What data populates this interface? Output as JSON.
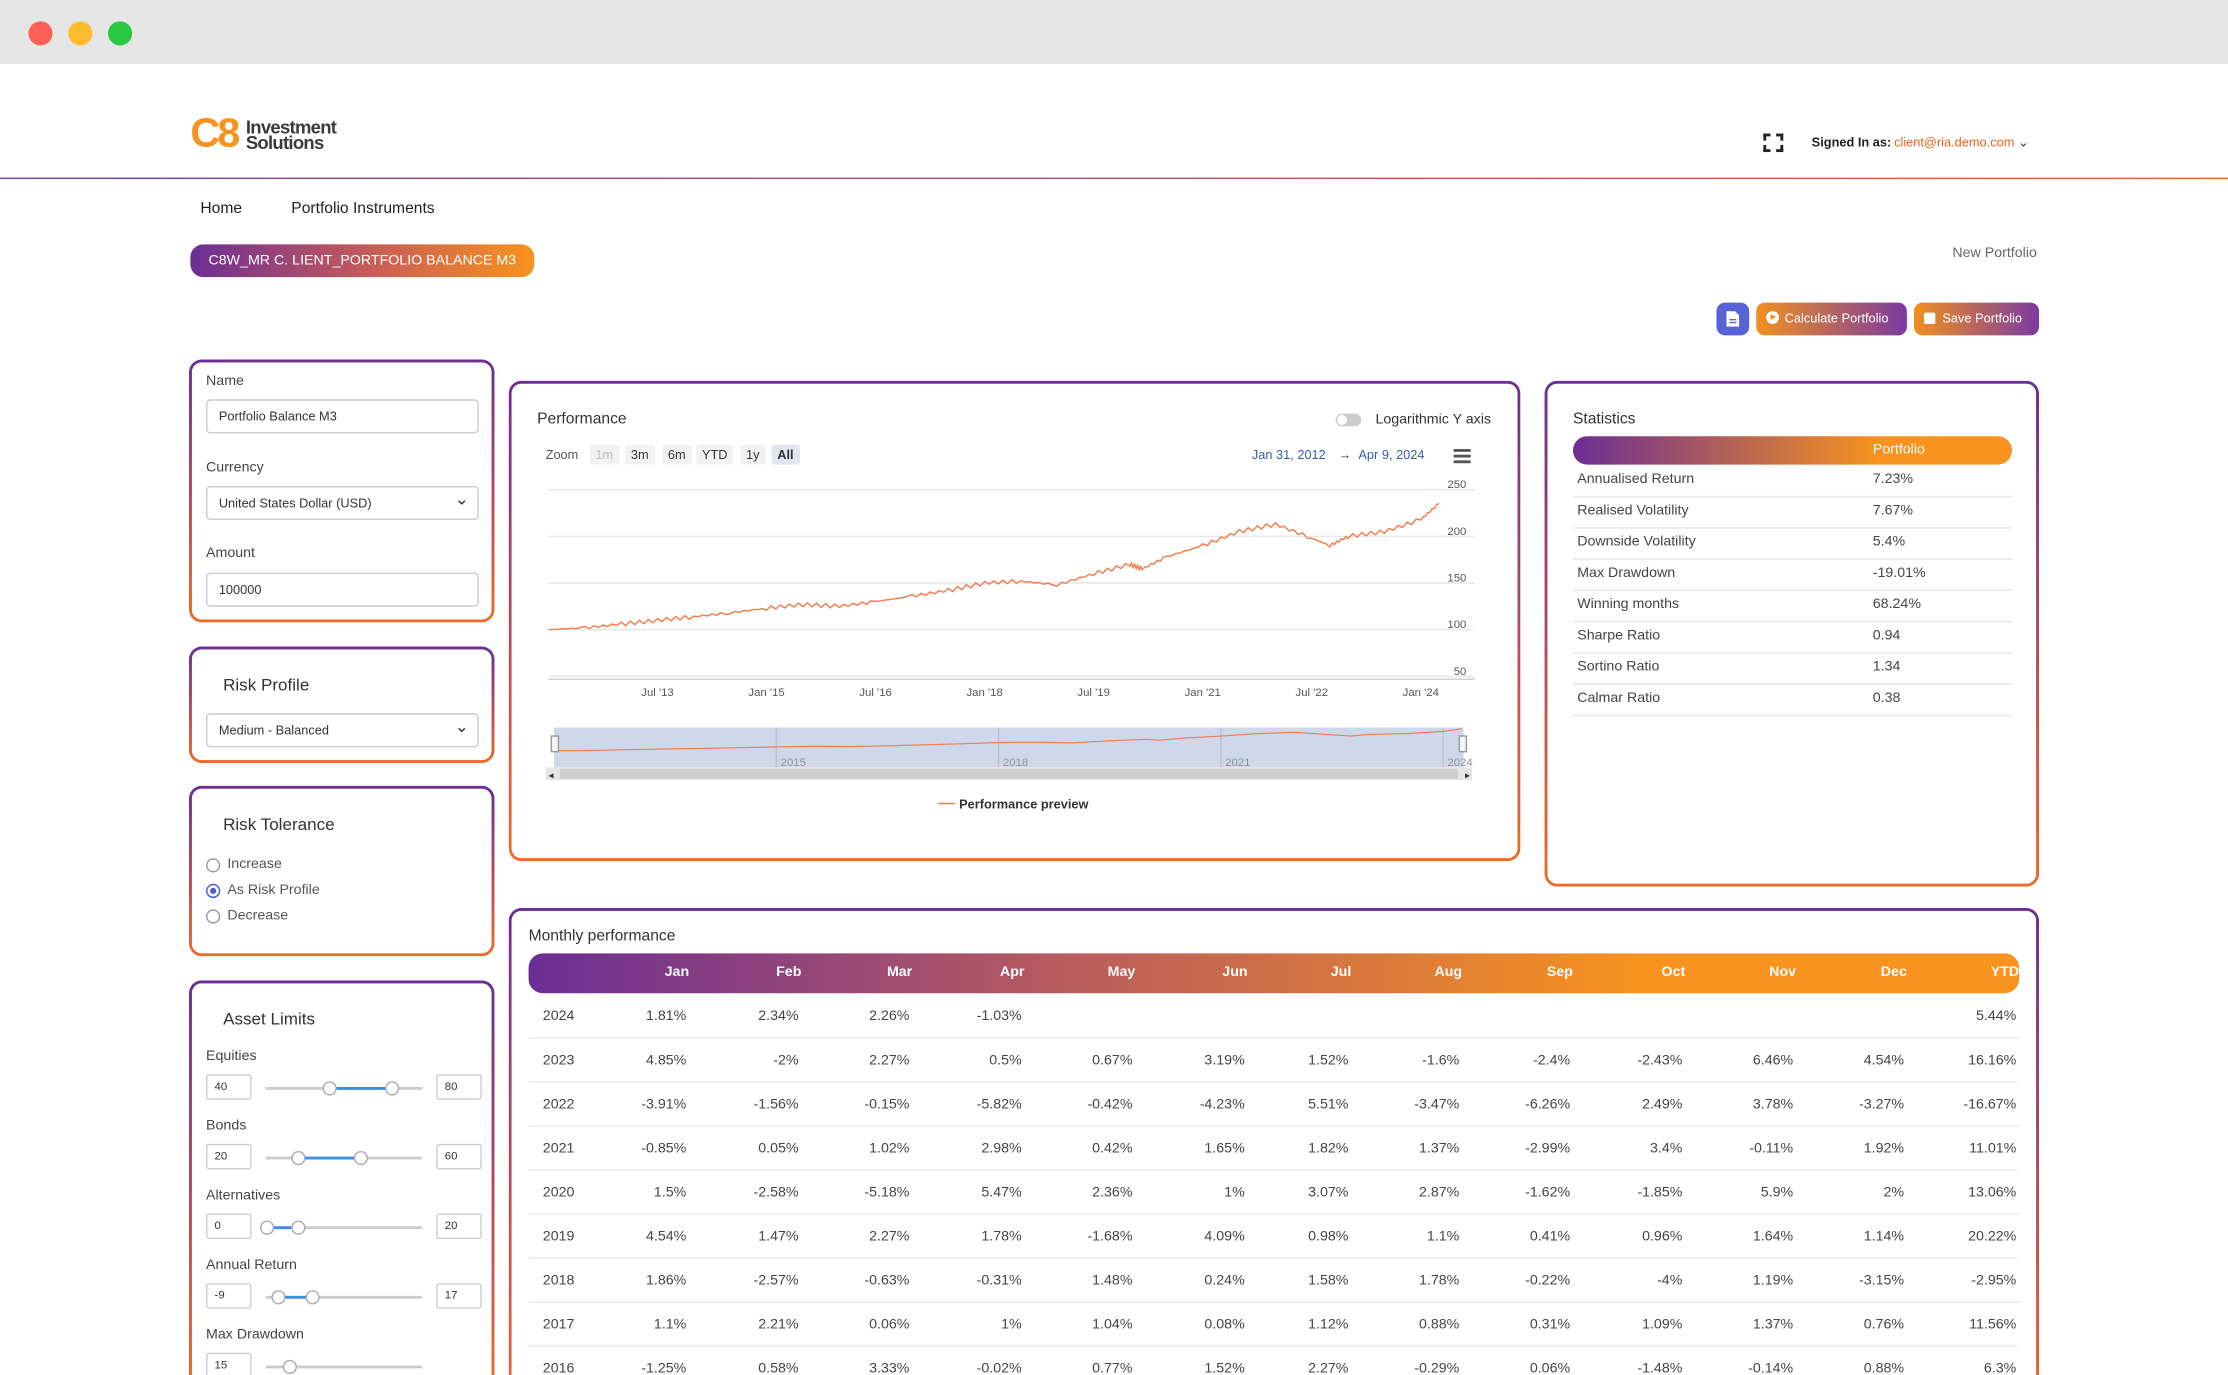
{
  "header": {
    "logo_mark": "C8",
    "logo_line1": "Investment",
    "logo_line2": "Solutions",
    "signed_in_label": "Signed In as:",
    "email": "client@ria.demo.com"
  },
  "nav": {
    "home": "Home",
    "instruments": "Portfolio Instruments"
  },
  "portfolio_pill": "C8W_MR C. LIENT_PORTFOLIO BALANCE M3",
  "new_portfolio": "New Portfolio",
  "toolbar": {
    "calculate": "Calculate Portfolio",
    "save": "Save Portfolio"
  },
  "form": {
    "name_label": "Name",
    "name_value": "Portfolio Balance M3",
    "currency_label": "Currency",
    "currency_value": "United States Dollar (USD)",
    "amount_label": "Amount",
    "amount_value": "100000"
  },
  "risk_profile": {
    "title": "Risk Profile",
    "value": "Medium - Balanced"
  },
  "risk_tolerance": {
    "title": "Risk Tolerance",
    "options": [
      "Increase",
      "As Risk Profile",
      "Decrease"
    ],
    "selected": "As Risk Profile"
  },
  "asset_limits": {
    "title": "Asset Limits",
    "items": [
      {
        "label": "Equities",
        "min": "40",
        "max": "80"
      },
      {
        "label": "Bonds",
        "min": "20",
        "max": "60"
      },
      {
        "label": "Alternatives",
        "min": "0",
        "max": "20"
      },
      {
        "label": "Annual Return",
        "min": "-9",
        "max": "17"
      },
      {
        "label": "Max Drawdown",
        "min": "15",
        "max": ""
      }
    ]
  },
  "performance": {
    "title": "Performance",
    "log_label": "Logarithmic Y axis",
    "zoom_label": "Zoom",
    "zoom_options": [
      "1m",
      "3m",
      "6m",
      "YTD",
      "1y",
      "All"
    ],
    "zoom_selected": "All",
    "date_from": "Jan 31, 2012",
    "date_arrow": "→",
    "date_to": "Apr 9, 2024",
    "legend": "Performance preview",
    "navigator_labels": [
      "2015",
      "2018",
      "2021",
      "2024"
    ]
  },
  "chart_data": {
    "type": "line",
    "title": "Performance",
    "x": [
      "2012-01",
      "2012-07",
      "2013-01",
      "2013-07",
      "2014-01",
      "2014-07",
      "2015-01",
      "2015-07",
      "2016-01",
      "2016-07",
      "2017-01",
      "2017-07",
      "2018-01",
      "2018-07",
      "2019-01",
      "2019-07",
      "2020-01",
      "2020-03",
      "2020-07",
      "2021-01",
      "2021-07",
      "2022-01",
      "2022-07",
      "2022-10",
      "2023-01",
      "2023-07",
      "2024-01",
      "2024-04"
    ],
    "series": [
      {
        "values": [
          100,
          102,
          106,
          110,
          114,
          118,
          123,
          127,
          125,
          130,
          136,
          142,
          150,
          152,
          148,
          160,
          170,
          165,
          178,
          190,
          205,
          213,
          198,
          190,
          200,
          205,
          218,
          235
        ]
      }
    ],
    "xticks": [
      "Jul '13",
      "Jan '15",
      "Jul '16",
      "Jan '18",
      "Jul '19",
      "Jan '21",
      "Jul '22",
      "Jan '24"
    ],
    "yticks": [
      50,
      100,
      150,
      200,
      250
    ],
    "ylim": [
      50,
      260
    ]
  },
  "statistics": {
    "title": "Statistics",
    "column": "Portfolio",
    "rows": [
      {
        "label": "Annualised Return",
        "value": "7.23%"
      },
      {
        "label": "Realised Volatility",
        "value": "7.67%"
      },
      {
        "label": "Downside Volatility",
        "value": "5.4%"
      },
      {
        "label": "Max Drawdown",
        "value": "-19.01%"
      },
      {
        "label": "Winning months",
        "value": "68.24%"
      },
      {
        "label": "Sharpe Ratio",
        "value": "0.94"
      },
      {
        "label": "Sortino Ratio",
        "value": "1.34"
      },
      {
        "label": "Calmar Ratio",
        "value": "0.38"
      }
    ]
  },
  "monthly": {
    "title": "Monthly performance",
    "headers": [
      "Jan",
      "Feb",
      "Mar",
      "Apr",
      "May",
      "Jun",
      "Jul",
      "Aug",
      "Sep",
      "Oct",
      "Nov",
      "Dec",
      "YTD"
    ],
    "rows": [
      {
        "year": "2024",
        "values": [
          "1.81%",
          "2.34%",
          "2.26%",
          "-1.03%",
          "",
          "",
          "",
          "",
          "",
          "",
          "",
          "",
          "5.44%"
        ]
      },
      {
        "year": "2023",
        "values": [
          "4.85%",
          "-2%",
          "2.27%",
          "0.5%",
          "0.67%",
          "3.19%",
          "1.52%",
          "-1.6%",
          "-2.4%",
          "-2.43%",
          "6.46%",
          "4.54%",
          "16.16%"
        ]
      },
      {
        "year": "2022",
        "values": [
          "-3.91%",
          "-1.56%",
          "-0.15%",
          "-5.82%",
          "-0.42%",
          "-4.23%",
          "5.51%",
          "-3.47%",
          "-6.26%",
          "2.49%",
          "3.78%",
          "-3.27%",
          "-16.67%"
        ]
      },
      {
        "year": "2021",
        "values": [
          "-0.85%",
          "0.05%",
          "1.02%",
          "2.98%",
          "0.42%",
          "1.65%",
          "1.82%",
          "1.37%",
          "-2.99%",
          "3.4%",
          "-0.11%",
          "1.92%",
          "11.01%"
        ]
      },
      {
        "year": "2020",
        "values": [
          "1.5%",
          "-2.58%",
          "-5.18%",
          "5.47%",
          "2.36%",
          "1%",
          "3.07%",
          "2.87%",
          "-1.62%",
          "-1.85%",
          "5.9%",
          "2%",
          "13.06%"
        ]
      },
      {
        "year": "2019",
        "values": [
          "4.54%",
          "1.47%",
          "2.27%",
          "1.78%",
          "-1.68%",
          "4.09%",
          "0.98%",
          "1.1%",
          "0.41%",
          "0.96%",
          "1.64%",
          "1.14%",
          "20.22%"
        ]
      },
      {
        "year": "2018",
        "values": [
          "1.86%",
          "-2.57%",
          "-0.63%",
          "-0.31%",
          "1.48%",
          "0.24%",
          "1.58%",
          "1.78%",
          "-0.22%",
          "-4%",
          "1.19%",
          "-3.15%",
          "-2.95%"
        ]
      },
      {
        "year": "2017",
        "values": [
          "1.1%",
          "2.21%",
          "0.06%",
          "1%",
          "1.04%",
          "0.08%",
          "1.12%",
          "0.88%",
          "0.31%",
          "1.09%",
          "1.37%",
          "0.76%",
          "11.56%"
        ]
      },
      {
        "year": "2016",
        "values": [
          "-1.25%",
          "0.58%",
          "3.33%",
          "-0.02%",
          "0.77%",
          "1.52%",
          "2.27%",
          "-0.29%",
          "0.06%",
          "-1.48%",
          "-0.14%",
          "0.88%",
          "6.3%"
        ]
      }
    ]
  }
}
